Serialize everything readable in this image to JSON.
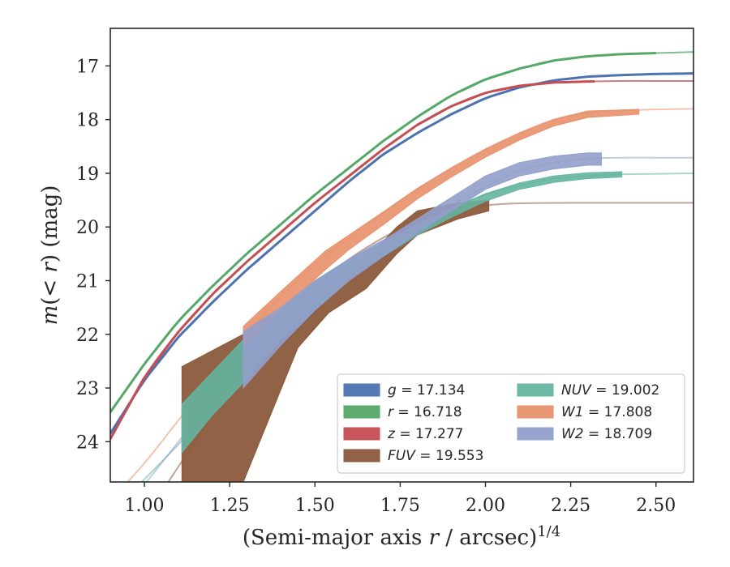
{
  "chart_data": {
    "type": "line",
    "xlabel": "(Semi-major axis r / arcsec)^1/4",
    "ylabel": "m(< r) (mag)",
    "xlim": [
      0.9,
      2.61
    ],
    "ylim": [
      24.75,
      16.3
    ],
    "y_inverted": true,
    "grid": false,
    "legend_position": "lower-right",
    "legend_columns": 2,
    "xticks": [
      1.0,
      1.25,
      1.5,
      1.75,
      2.0,
      2.25,
      2.5
    ],
    "xtick_labels": [
      "1.00",
      "1.25",
      "1.50",
      "1.75",
      "2.00",
      "2.25",
      "2.50"
    ],
    "yticks": [
      17,
      18,
      19,
      20,
      21,
      22,
      23,
      24
    ],
    "ytick_labels": [
      "17",
      "18",
      "19",
      "20",
      "21",
      "22",
      "23",
      "24"
    ],
    "series": [
      {
        "name": "g = 17.134",
        "legend_var": "g",
        "legend_val": "17.134",
        "color": "#4c72b0",
        "model": [
          [
            0.9,
            23.85
          ],
          [
            1.0,
            22.85
          ],
          [
            1.1,
            22.05
          ],
          [
            1.2,
            21.4
          ],
          [
            1.3,
            20.8
          ],
          [
            1.4,
            20.25
          ],
          [
            1.5,
            19.7
          ],
          [
            1.6,
            19.15
          ],
          [
            1.7,
            18.65
          ],
          [
            1.8,
            18.25
          ],
          [
            1.9,
            17.9
          ],
          [
            2.0,
            17.6
          ],
          [
            2.1,
            17.4
          ],
          [
            2.2,
            17.27
          ],
          [
            2.3,
            17.2
          ],
          [
            2.4,
            17.17
          ],
          [
            2.5,
            17.15
          ],
          [
            2.61,
            17.14
          ]
        ],
        "data_x": [
          0.9,
          2.61
        ],
        "data_width": 0.06
      },
      {
        "name": "r = 16.718",
        "legend_var": "r",
        "legend_val": "16.718",
        "color": "#55a868",
        "model": [
          [
            0.9,
            23.45
          ],
          [
            1.0,
            22.55
          ],
          [
            1.1,
            21.75
          ],
          [
            1.2,
            21.1
          ],
          [
            1.3,
            20.5
          ],
          [
            1.4,
            19.95
          ],
          [
            1.5,
            19.4
          ],
          [
            1.6,
            18.9
          ],
          [
            1.7,
            18.4
          ],
          [
            1.8,
            17.95
          ],
          [
            1.9,
            17.55
          ],
          [
            2.0,
            17.25
          ],
          [
            2.1,
            17.05
          ],
          [
            2.2,
            16.9
          ],
          [
            2.3,
            16.82
          ],
          [
            2.4,
            16.78
          ],
          [
            2.5,
            16.76
          ],
          [
            2.61,
            16.74
          ]
        ],
        "data_x": [
          0.9,
          2.5
        ],
        "data_width": 0.07
      },
      {
        "name": "z = 17.277",
        "legend_var": "z",
        "legend_val": "17.277",
        "color": "#c44e52",
        "model": [
          [
            0.9,
            23.95
          ],
          [
            1.0,
            22.8
          ],
          [
            1.1,
            21.95
          ],
          [
            1.2,
            21.25
          ],
          [
            1.3,
            20.65
          ],
          [
            1.4,
            20.1
          ],
          [
            1.5,
            19.55
          ],
          [
            1.6,
            19.05
          ],
          [
            1.7,
            18.55
          ],
          [
            1.8,
            18.1
          ],
          [
            1.9,
            17.75
          ],
          [
            2.0,
            17.5
          ],
          [
            2.1,
            17.37
          ],
          [
            2.2,
            17.31
          ],
          [
            2.3,
            17.29
          ],
          [
            2.4,
            17.28
          ],
          [
            2.5,
            17.28
          ],
          [
            2.61,
            17.28
          ]
        ],
        "data_x": [
          0.9,
          2.32
        ],
        "data_width": 0.07
      },
      {
        "name": "FUV = 19.553",
        "legend_var": "FUV",
        "legend_val": "19.553",
        "color": "#8c5a3c",
        "model": [
          [
            1.07,
            24.75
          ],
          [
            1.2,
            23.5
          ],
          [
            1.3,
            22.55
          ],
          [
            1.4,
            21.75
          ],
          [
            1.5,
            21.1
          ],
          [
            1.6,
            20.6
          ],
          [
            1.7,
            20.2
          ],
          [
            1.8,
            19.9
          ],
          [
            1.9,
            19.7
          ],
          [
            2.0,
            19.6
          ],
          [
            2.1,
            19.56
          ],
          [
            2.3,
            19.55
          ],
          [
            2.61,
            19.55
          ]
        ],
        "band": [
          [
            1.11,
            22.6,
            24.75
          ],
          [
            1.29,
            22.0,
            24.75
          ],
          [
            1.45,
            21.3,
            22.25
          ],
          [
            1.54,
            20.9,
            21.6
          ],
          [
            1.65,
            20.6,
            21.15
          ],
          [
            1.74,
            20.0,
            20.5
          ],
          [
            1.8,
            19.7,
            20.15
          ],
          [
            1.92,
            19.55,
            19.85
          ],
          [
            2.01,
            19.5,
            19.7
          ]
        ]
      },
      {
        "name": "NUV = 19.002",
        "legend_var": "NUV",
        "legend_val": "19.002",
        "color": "#64b5a0",
        "model": [
          [
            0.9,
            25.3
          ],
          [
            1.0,
            24.7
          ],
          [
            1.1,
            24.05
          ],
          [
            1.2,
            23.35
          ],
          [
            1.3,
            22.65
          ],
          [
            1.4,
            21.95
          ],
          [
            1.5,
            21.3
          ],
          [
            1.6,
            20.75
          ],
          [
            1.7,
            20.3
          ],
          [
            1.8,
            19.95
          ],
          [
            1.9,
            19.65
          ],
          [
            2.0,
            19.4
          ],
          [
            2.1,
            19.23
          ],
          [
            2.2,
            19.1
          ],
          [
            2.3,
            19.05
          ],
          [
            2.4,
            19.02
          ],
          [
            2.5,
            19.01
          ],
          [
            2.61,
            19.0
          ]
        ],
        "band": [
          [
            1.11,
            23.3,
            24.2
          ],
          [
            1.2,
            22.7,
            23.5
          ],
          [
            1.29,
            22.1,
            22.9
          ],
          [
            1.4,
            21.5,
            22.1
          ],
          [
            1.5,
            21.0,
            21.55
          ],
          [
            1.6,
            20.6,
            20.95
          ],
          [
            1.7,
            20.3,
            20.55
          ],
          [
            1.8,
            19.95,
            20.15
          ],
          [
            1.9,
            19.65,
            19.82
          ],
          [
            2.0,
            19.38,
            19.52
          ],
          [
            2.1,
            19.18,
            19.3
          ],
          [
            2.2,
            19.05,
            19.17
          ],
          [
            2.3,
            18.99,
            19.1
          ],
          [
            2.4,
            18.97,
            19.07
          ]
        ]
      },
      {
        "name": "W1 = 17.808",
        "legend_var": "W1",
        "legend_val": "17.808",
        "color": "#e8916b",
        "model": [
          [
            0.9,
            25.1
          ],
          [
            1.0,
            24.4
          ],
          [
            1.1,
            23.6
          ],
          [
            1.2,
            22.8
          ],
          [
            1.3,
            22.0
          ],
          [
            1.4,
            21.3
          ],
          [
            1.5,
            20.7
          ],
          [
            1.6,
            20.2
          ],
          [
            1.7,
            19.75
          ],
          [
            1.8,
            19.3
          ],
          [
            1.9,
            18.9
          ],
          [
            2.0,
            18.55
          ],
          [
            2.1,
            18.25
          ],
          [
            2.2,
            18.0
          ],
          [
            2.3,
            17.87
          ],
          [
            2.4,
            17.83
          ],
          [
            2.5,
            17.81
          ],
          [
            2.61,
            17.8
          ]
        ],
        "band": [
          [
            1.29,
            21.85,
            22.25
          ],
          [
            1.4,
            21.2,
            21.55
          ],
          [
            1.53,
            20.45,
            20.8
          ],
          [
            1.6,
            20.15,
            20.42
          ],
          [
            1.7,
            19.72,
            19.96
          ],
          [
            1.8,
            19.28,
            19.48
          ],
          [
            1.9,
            18.9,
            19.07
          ],
          [
            2.0,
            18.55,
            18.7
          ],
          [
            2.1,
            18.25,
            18.38
          ],
          [
            2.2,
            18.0,
            18.12
          ],
          [
            2.3,
            17.84,
            17.96
          ],
          [
            2.45,
            17.81,
            17.9
          ]
        ]
      },
      {
        "name": "W2 = 18.709",
        "legend_var": "W2",
        "legend_val": "18.709",
        "color": "#929fcb",
        "model": [
          [
            0.9,
            25.6
          ],
          [
            1.0,
            24.8
          ],
          [
            1.1,
            24.0
          ],
          [
            1.2,
            23.2
          ],
          [
            1.3,
            22.4
          ],
          [
            1.4,
            21.7
          ],
          [
            1.5,
            21.1
          ],
          [
            1.6,
            20.6
          ],
          [
            1.7,
            20.25
          ],
          [
            1.8,
            19.95
          ],
          [
            1.9,
            19.6
          ],
          [
            2.0,
            19.25
          ],
          [
            2.1,
            18.95
          ],
          [
            2.2,
            18.8
          ],
          [
            2.3,
            18.73
          ],
          [
            2.4,
            18.71
          ],
          [
            2.5,
            18.71
          ],
          [
            2.61,
            18.71
          ]
        ],
        "band": [
          [
            1.29,
            21.95,
            23.0
          ],
          [
            1.4,
            21.5,
            22.2
          ],
          [
            1.5,
            21.0,
            21.55
          ],
          [
            1.6,
            20.6,
            21.0
          ],
          [
            1.7,
            20.25,
            20.55
          ],
          [
            1.8,
            19.85,
            20.12
          ],
          [
            1.9,
            19.45,
            19.7
          ],
          [
            2.0,
            19.05,
            19.3
          ],
          [
            2.1,
            18.8,
            19.05
          ],
          [
            2.2,
            18.68,
            18.92
          ],
          [
            2.3,
            18.62,
            18.85
          ],
          [
            2.34,
            18.62,
            18.85
          ]
        ]
      }
    ]
  }
}
